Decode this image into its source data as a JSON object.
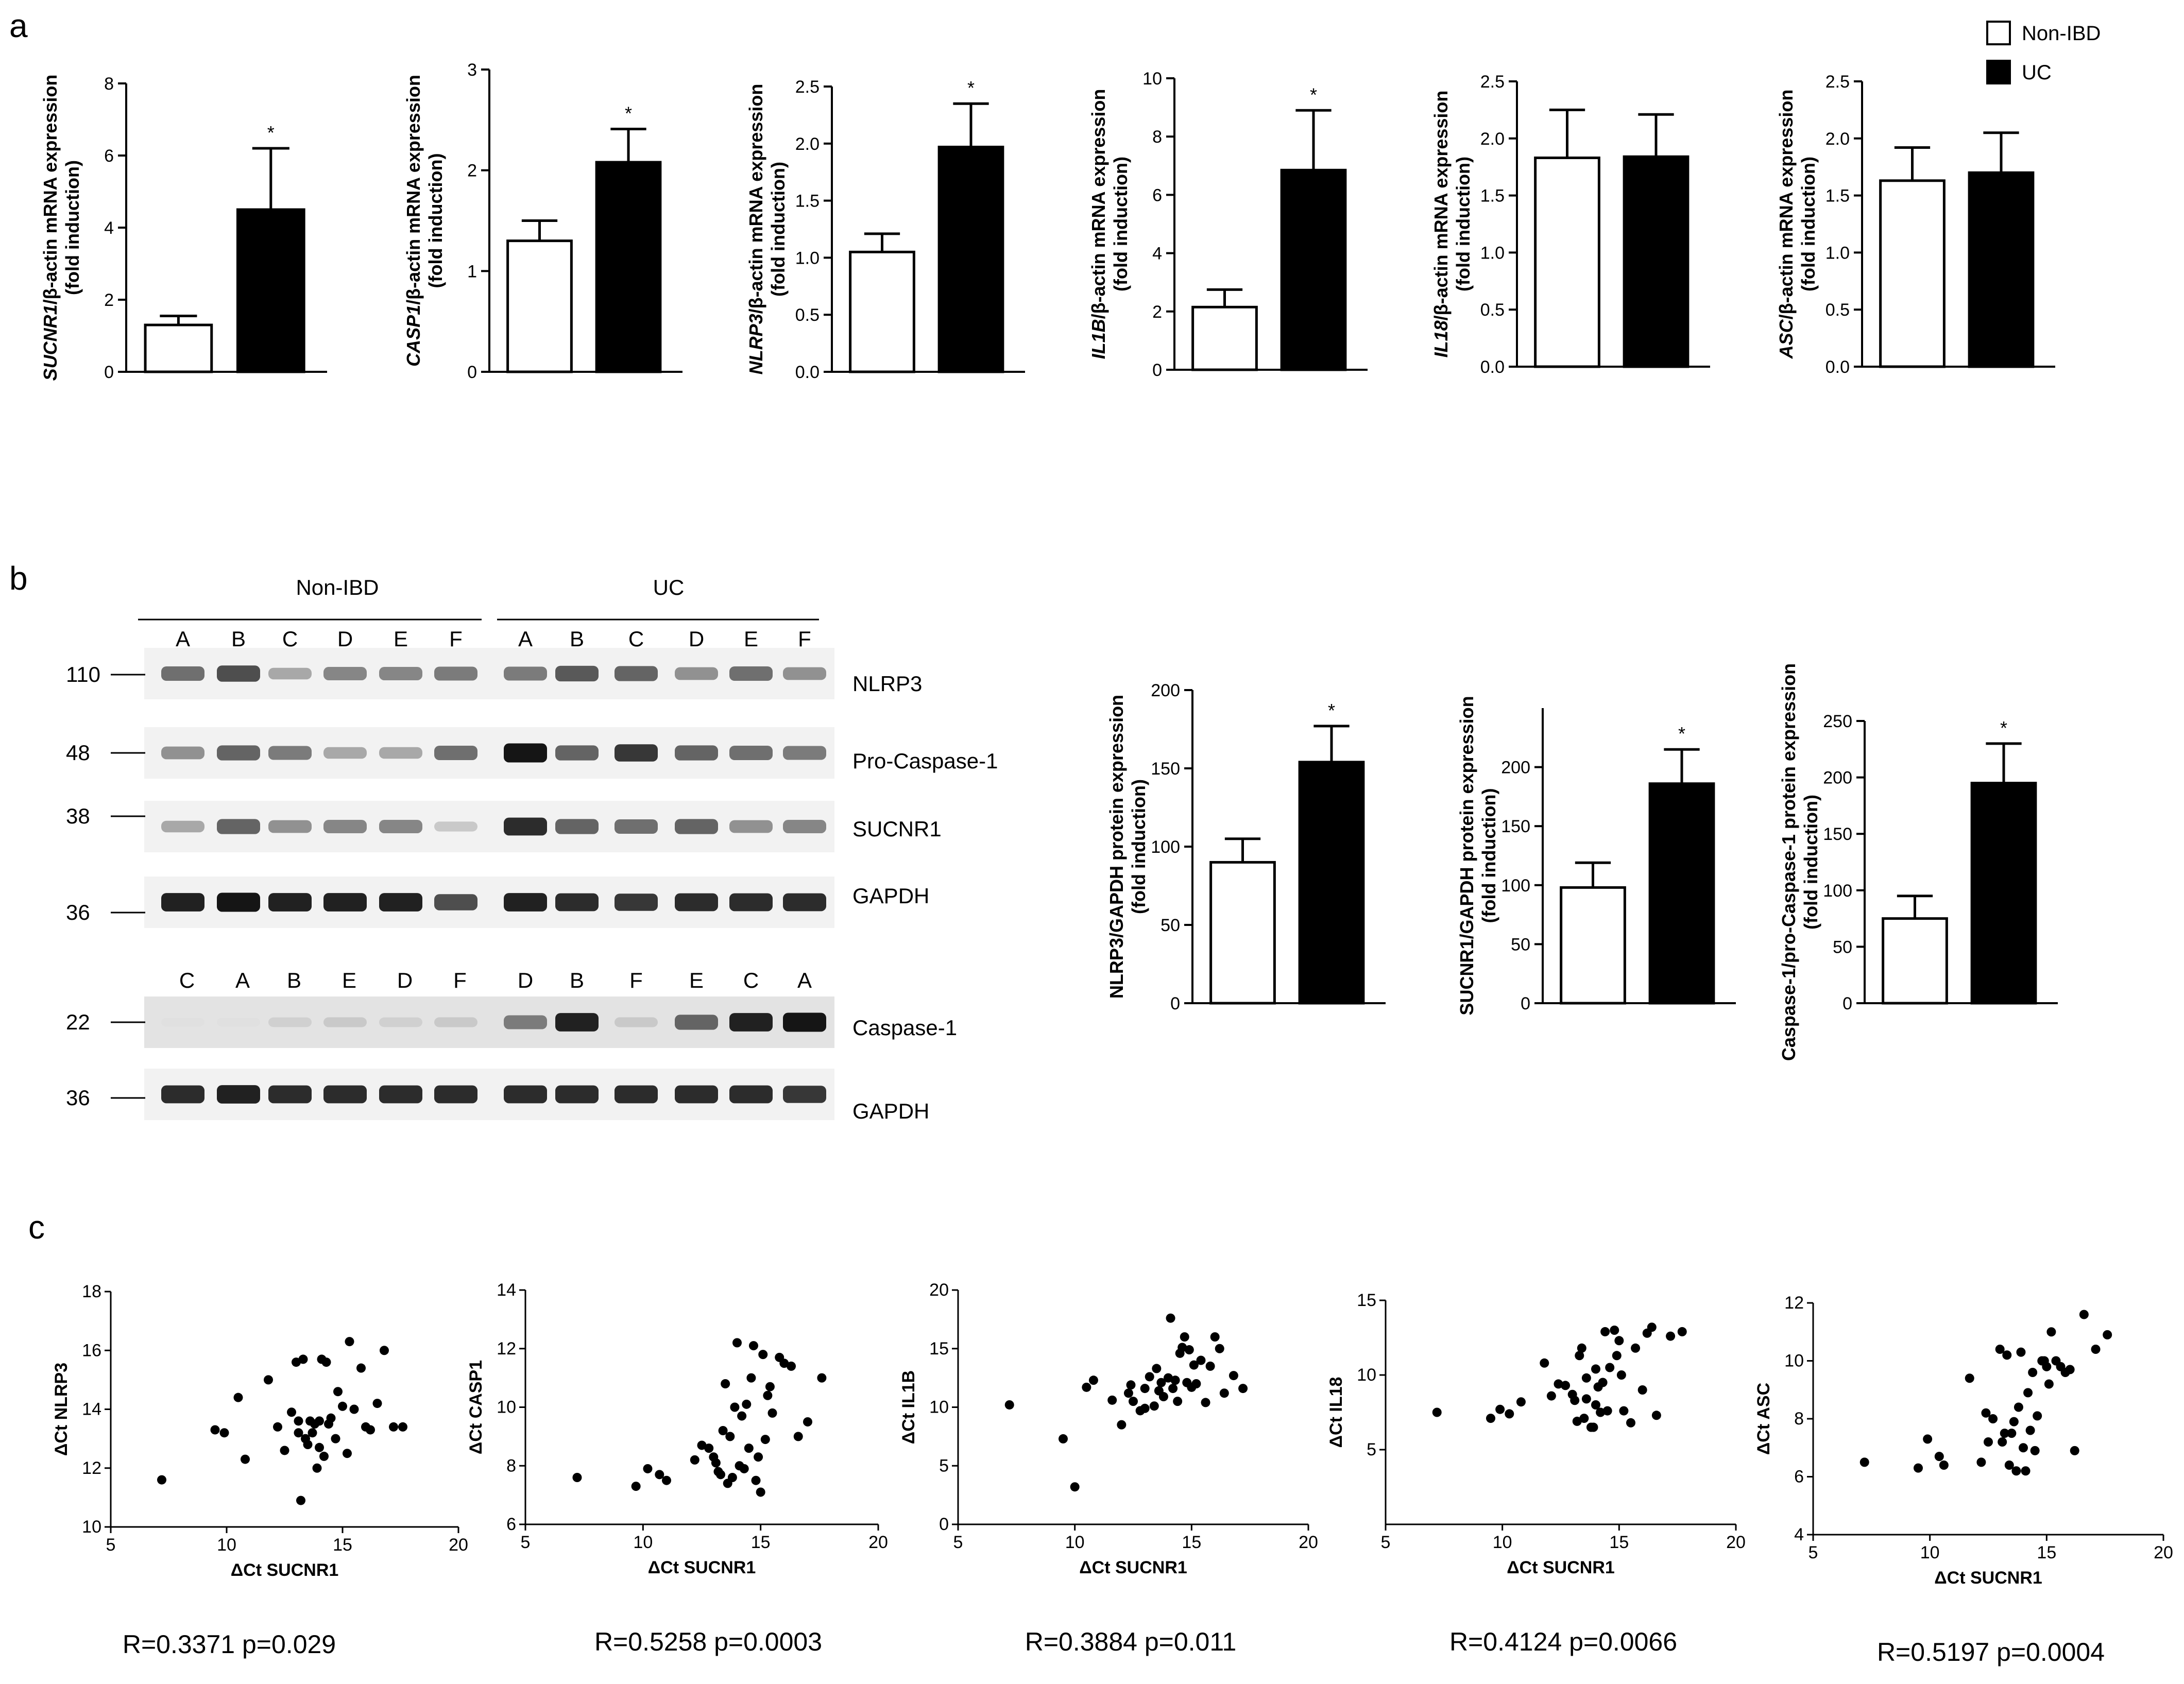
{
  "panel_labels": {
    "a": "a",
    "b": "b",
    "c": "c"
  },
  "legend": {
    "non_ibd": "Non-IBD",
    "uc": "UC"
  },
  "blot": {
    "groups": [
      "Non-IBD",
      "UC"
    ],
    "lanes_top": [
      "A",
      "B",
      "C",
      "D",
      "E",
      "F",
      "A",
      "B",
      "C",
      "D",
      "E",
      "F"
    ],
    "lanes_bottom": [
      "C",
      "A",
      "B",
      "E",
      "D",
      "F",
      "D",
      "B",
      "F",
      "E",
      "C",
      "A"
    ],
    "rows": [
      {
        "marker": "110",
        "label": "NLRP3",
        "intensity": [
          0.55,
          0.7,
          0.3,
          0.45,
          0.45,
          0.5,
          0.5,
          0.65,
          0.6,
          0.4,
          0.55,
          0.4
        ]
      },
      {
        "marker": "48",
        "label": "Pro-Caspase-1",
        "intensity": [
          0.4,
          0.6,
          0.5,
          0.3,
          0.3,
          0.55,
          0.95,
          0.6,
          0.8,
          0.6,
          0.55,
          0.5
        ]
      },
      {
        "marker": "38",
        "label": "SUCNR1",
        "intensity": [
          0.3,
          0.6,
          0.4,
          0.45,
          0.45,
          0.15,
          0.85,
          0.6,
          0.55,
          0.6,
          0.4,
          0.45
        ]
      },
      {
        "marker": "36",
        "label": "GAPDH",
        "intensity": [
          0.9,
          0.95,
          0.9,
          0.9,
          0.9,
          0.7,
          0.9,
          0.85,
          0.8,
          0.85,
          0.85,
          0.85
        ]
      },
      {
        "marker": "22",
        "label": "Caspase-1",
        "intensity": [
          0.05,
          0.05,
          0.12,
          0.15,
          0.12,
          0.15,
          0.5,
          0.9,
          0.15,
          0.6,
          0.9,
          0.95
        ]
      },
      {
        "marker": "36",
        "label": "GAPDH",
        "intensity": [
          0.85,
          0.9,
          0.85,
          0.85,
          0.85,
          0.85,
          0.85,
          0.85,
          0.85,
          0.85,
          0.85,
          0.8
        ]
      }
    ]
  },
  "chart_data": [
    {
      "type": "bar",
      "panel": "a",
      "gene": "SUCNR1",
      "ylabel": "/β-actin mRNA expression",
      "ylabel2": "(fold induction)",
      "categories": [
        "Non-IBD",
        "UC"
      ],
      "values": [
        1.3,
        4.5
      ],
      "errors": [
        0.25,
        1.7
      ],
      "sig": [
        "",
        "*"
      ],
      "ylim": [
        0,
        8
      ],
      "yticks": [
        0,
        2,
        4,
        6,
        8
      ],
      "yticklabels": [
        "0",
        "2",
        "4",
        "6",
        "8"
      ]
    },
    {
      "type": "bar",
      "panel": "a",
      "gene": "CASP1",
      "ylabel": "/β-actin mRNA expression",
      "ylabel2": "(fold induction)",
      "categories": [
        "Non-IBD",
        "UC"
      ],
      "values": [
        1.3,
        2.08
      ],
      "errors": [
        0.2,
        0.33
      ],
      "sig": [
        "",
        "*"
      ],
      "ylim": [
        0,
        3
      ],
      "yticks": [
        0,
        1,
        2,
        3
      ],
      "yticklabels": [
        "0",
        "1",
        "2",
        "3"
      ]
    },
    {
      "type": "bar",
      "panel": "a",
      "gene": "NLRP3",
      "ylabel": "/β-actin mRNA expression",
      "ylabel2": "(fold induction)",
      "categories": [
        "Non-IBD",
        "UC"
      ],
      "values": [
        1.05,
        1.97
      ],
      "errors": [
        0.16,
        0.38
      ],
      "sig": [
        "",
        "*"
      ],
      "ylim": [
        0,
        2.5
      ],
      "yticks": [
        0,
        0.5,
        1,
        1.5,
        2,
        2.5
      ],
      "yticklabels": [
        "0.0",
        "0.5",
        "1.0",
        "1.5",
        "2.0",
        "2.5"
      ]
    },
    {
      "type": "bar",
      "panel": "a",
      "gene": "IL1B",
      "ylabel": "/β-actin mRNA expression",
      "ylabel2": "(fold induction)",
      "categories": [
        "Non-IBD",
        "UC"
      ],
      "values": [
        2.15,
        6.85
      ],
      "errors": [
        0.6,
        2.05
      ],
      "sig": [
        "",
        "*"
      ],
      "ylim": [
        0,
        10
      ],
      "yticks": [
        0,
        2,
        4,
        6,
        8,
        10
      ],
      "yticklabels": [
        "0",
        "2",
        "4",
        "6",
        "8",
        "10"
      ]
    },
    {
      "type": "bar",
      "panel": "a",
      "gene": "IL18",
      "ylabel": "/β-actin mRNA expression",
      "ylabel2": "(fold induction)",
      "categories": [
        "Non-IBD",
        "UC"
      ],
      "values": [
        1.83,
        1.84
      ],
      "errors": [
        0.42,
        0.37
      ],
      "sig": [
        "",
        ""
      ],
      "ylim": [
        0,
        2.5
      ],
      "yticks": [
        0,
        0.5,
        1,
        1.5,
        2,
        2.5
      ],
      "yticklabels": [
        "0.0",
        "0.5",
        "1.0",
        "1.5",
        "2.0",
        "2.5"
      ]
    },
    {
      "type": "bar",
      "panel": "a",
      "gene": "ASC",
      "ylabel": "/β-actin mRNA expression",
      "ylabel2": "(fold induction)",
      "categories": [
        "Non-IBD",
        "UC"
      ],
      "values": [
        1.63,
        1.7
      ],
      "errors": [
        0.29,
        0.35
      ],
      "sig": [
        "",
        ""
      ],
      "ylim": [
        0,
        2.5
      ],
      "yticks": [
        0,
        0.5,
        1,
        1.5,
        2,
        2.5
      ],
      "yticklabels": [
        "0.0",
        "0.5",
        "1.0",
        "1.5",
        "2.0",
        "2.5"
      ]
    },
    {
      "type": "bar",
      "panel": "b",
      "gene": "",
      "ylabel": "NLRP3/GAPDH protein expression",
      "ylabel2": "(fold induction)",
      "categories": [
        "Non-IBD",
        "UC"
      ],
      "values": [
        90,
        154
      ],
      "errors": [
        15,
        23
      ],
      "sig": [
        "",
        "*"
      ],
      "ylim": [
        0,
        200
      ],
      "yticks": [
        0,
        50,
        100,
        150,
        200
      ],
      "yticklabels": [
        "0",
        "50",
        "100",
        "150",
        "200"
      ]
    },
    {
      "type": "bar",
      "panel": "b",
      "gene": "",
      "ylabel": "SUCNR1/GAPDH protein expression",
      "ylabel2": "(fold induction)",
      "categories": [
        "Non-IBD",
        "UC"
      ],
      "values": [
        98,
        186
      ],
      "errors": [
        21,
        29
      ],
      "sig": [
        "",
        "*"
      ],
      "ylim": [
        0,
        250
      ],
      "yticks": [
        0,
        50,
        100,
        150,
        200
      ],
      "yticklabels": [
        "0",
        "50",
        "100",
        "150",
        "200"
      ]
    },
    {
      "type": "bar",
      "panel": "b",
      "gene": "",
      "ylabel": "Caspase-1/pro-Caspase-1 protein expression",
      "ylabel2": "(fold induction)",
      "categories": [
        "Non-IBD",
        "UC"
      ],
      "values": [
        75,
        195
      ],
      "errors": [
        20,
        35
      ],
      "sig": [
        "",
        "*"
      ],
      "ylim": [
        0,
        250
      ],
      "yticks": [
        0,
        50,
        100,
        150,
        200,
        250
      ],
      "yticklabels": [
        "0",
        "50",
        "100",
        "150",
        "200",
        "250"
      ]
    },
    {
      "type": "scatter",
      "panel": "c",
      "xlabel": "ΔCt SUCNR1",
      "ylabel": "ΔCt NLRP3",
      "xlim": [
        5,
        20
      ],
      "ylim": [
        10,
        18
      ],
      "xticks": [
        5,
        10,
        15,
        20
      ],
      "yticks": [
        10,
        12,
        14,
        16,
        18
      ],
      "stat": "R=0.3371  p=0.029",
      "x": [
        7.2,
        9.5,
        9.9,
        10.5,
        10.8,
        11.8,
        12.2,
        12.5,
        12.8,
        13.0,
        13.1,
        13.2,
        13.3,
        13.4,
        13.5,
        13.6,
        13.7,
        13.8,
        13.9,
        14.0,
        14.1,
        14.2,
        14.3,
        14.4,
        14.5,
        14.7,
        14.8,
        15.0,
        15.2,
        15.3,
        15.5,
        15.8,
        16.0,
        16.2,
        16.5,
        16.8,
        17.2,
        17.6,
        13.1,
        14.0
      ],
      "y": [
        11.6,
        13.3,
        13.2,
        14.4,
        12.3,
        15.0,
        13.4,
        12.6,
        13.9,
        15.6,
        13.2,
        10.9,
        15.7,
        13.0,
        12.8,
        13.6,
        13.2,
        13.5,
        12.0,
        13.6,
        15.7,
        12.4,
        15.6,
        13.5,
        13.7,
        13.0,
        14.6,
        14.1,
        12.5,
        16.3,
        14.0,
        15.4,
        13.4,
        13.3,
        14.2,
        16.0,
        13.4,
        13.4,
        13.6,
        12.7
      ]
    },
    {
      "type": "scatter",
      "panel": "c",
      "xlabel": "ΔCt SUCNR1",
      "ylabel": "ΔCt CASP1",
      "xlim": [
        5,
        20
      ],
      "ylim": [
        6,
        14
      ],
      "xticks": [
        5,
        10,
        15,
        20
      ],
      "yticks": [
        6,
        8,
        10,
        12,
        14
      ],
      "stat": "R=0.5258  p=0.0003",
      "x": [
        7.2,
        9.7,
        10.2,
        10.7,
        11.0,
        12.2,
        12.5,
        12.8,
        13.0,
        13.2,
        13.4,
        13.5,
        13.6,
        13.7,
        13.8,
        13.9,
        14.0,
        14.1,
        14.2,
        14.3,
        14.4,
        14.5,
        14.6,
        14.7,
        14.8,
        15.0,
        15.1,
        15.2,
        15.3,
        15.5,
        15.8,
        16.0,
        16.3,
        16.6,
        17.0,
        17.6,
        13.1,
        14.9,
        15.4,
        13.3
      ],
      "y": [
        7.6,
        7.3,
        7.9,
        7.7,
        7.5,
        8.2,
        8.7,
        8.6,
        8.3,
        7.8,
        9.2,
        10.8,
        7.4,
        9.0,
        7.6,
        10.0,
        12.2,
        8.0,
        9.7,
        7.9,
        10.1,
        8.6,
        11.0,
        12.1,
        7.5,
        7.1,
        11.8,
        8.9,
        10.4,
        9.8,
        11.7,
        11.5,
        11.4,
        9.0,
        9.5,
        11.0,
        8.1,
        8.3,
        10.7,
        7.7
      ]
    },
    {
      "type": "scatter",
      "panel": "c",
      "xlabel": "ΔCt SUCNR1",
      "ylabel": "ΔCt IL1B",
      "xlim": [
        5,
        20
      ],
      "ylim": [
        0,
        20
      ],
      "xticks": [
        5,
        10,
        15,
        20
      ],
      "yticks": [
        0,
        5,
        10,
        15,
        20
      ],
      "stat": "R=0.3884  p=0.011",
      "x": [
        7.2,
        9.5,
        10.0,
        10.5,
        10.8,
        11.6,
        12.0,
        12.3,
        12.5,
        12.8,
        13.0,
        13.2,
        13.4,
        13.5,
        13.6,
        13.8,
        14.0,
        14.1,
        14.2,
        14.3,
        14.4,
        14.5,
        14.6,
        14.7,
        14.8,
        15.0,
        15.1,
        15.2,
        15.4,
        15.6,
        15.8,
        16.0,
        16.2,
        16.4,
        16.8,
        17.2,
        13.0,
        13.7,
        14.9,
        12.4
      ],
      "y": [
        10.2,
        7.3,
        3.2,
        11.7,
        12.3,
        10.6,
        8.5,
        11.2,
        10.5,
        9.7,
        11.6,
        12.6,
        10.1,
        13.3,
        11.4,
        10.9,
        12.5,
        17.6,
        11.6,
        12.3,
        10.5,
        14.6,
        15.1,
        16.0,
        12.1,
        11.7,
        13.6,
        12.0,
        14.0,
        10.4,
        13.5,
        16.0,
        15.0,
        11.2,
        12.7,
        11.6,
        9.9,
        12.1,
        14.9,
        11.9
      ]
    },
    {
      "type": "scatter",
      "panel": "c",
      "xlabel": "ΔCt SUCNR1",
      "ylabel": "ΔCt IL18",
      "xlim": [
        5,
        20
      ],
      "ylim": [
        0,
        15
      ],
      "xticks": [
        5,
        10,
        15,
        20
      ],
      "yticks": [
        5,
        10,
        15
      ],
      "stat": "R=0.4124  p=0.0066",
      "x": [
        7.2,
        9.5,
        9.9,
        10.3,
        10.8,
        11.8,
        12.1,
        12.4,
        12.7,
        13.0,
        13.2,
        13.3,
        13.4,
        13.5,
        13.6,
        13.8,
        13.9,
        14.0,
        14.1,
        14.2,
        14.3,
        14.4,
        14.5,
        14.6,
        14.8,
        15.0,
        15.1,
        15.2,
        15.5,
        15.7,
        16.0,
        16.2,
        16.4,
        16.6,
        17.2,
        17.7,
        13.1,
        14.0,
        14.9,
        13.6
      ],
      "y": [
        7.5,
        7.1,
        7.7,
        7.4,
        8.2,
        10.8,
        8.6,
        9.4,
        9.3,
        8.7,
        6.9,
        11.3,
        11.8,
        7.1,
        8.4,
        6.5,
        6.5,
        10.4,
        9.2,
        7.5,
        9.5,
        12.9,
        7.6,
        10.5,
        13.0,
        12.3,
        10.0,
        7.6,
        6.8,
        11.8,
        9.0,
        12.8,
        13.2,
        7.3,
        12.6,
        12.9,
        8.3,
        8.0,
        11.3,
        9.8
      ]
    },
    {
      "type": "scatter",
      "panel": "c",
      "xlabel": "ΔCt SUCNR1",
      "ylabel": "ΔCt ASC",
      "xlim": [
        5,
        20
      ],
      "ylim": [
        4,
        12
      ],
      "xticks": [
        5,
        10,
        15,
        20
      ],
      "yticks": [
        4,
        6,
        8,
        10,
        12
      ],
      "stat": "R=0.5197  p=0.0004",
      "x": [
        7.2,
        9.5,
        9.9,
        10.4,
        10.6,
        11.7,
        12.2,
        12.5,
        12.7,
        13.0,
        13.2,
        13.3,
        13.4,
        13.5,
        13.6,
        13.7,
        13.8,
        13.9,
        14.0,
        14.1,
        14.2,
        14.3,
        14.4,
        14.5,
        14.6,
        14.8,
        15.0,
        15.1,
        15.2,
        15.4,
        15.6,
        15.8,
        16.0,
        16.2,
        16.6,
        17.1,
        17.6,
        13.1,
        14.9,
        12.4
      ],
      "y": [
        6.5,
        6.3,
        7.3,
        6.7,
        6.4,
        9.4,
        6.5,
        7.2,
        8.0,
        10.4,
        7.5,
        10.2,
        6.4,
        7.5,
        7.9,
        6.2,
        8.4,
        10.3,
        7.0,
        6.2,
        8.9,
        7.6,
        9.6,
        6.9,
        8.1,
        10.0,
        9.8,
        9.2,
        11.0,
        10.0,
        9.8,
        9.6,
        9.7,
        6.9,
        11.6,
        10.4,
        10.9,
        7.2,
        10.0,
        8.2
      ]
    }
  ]
}
